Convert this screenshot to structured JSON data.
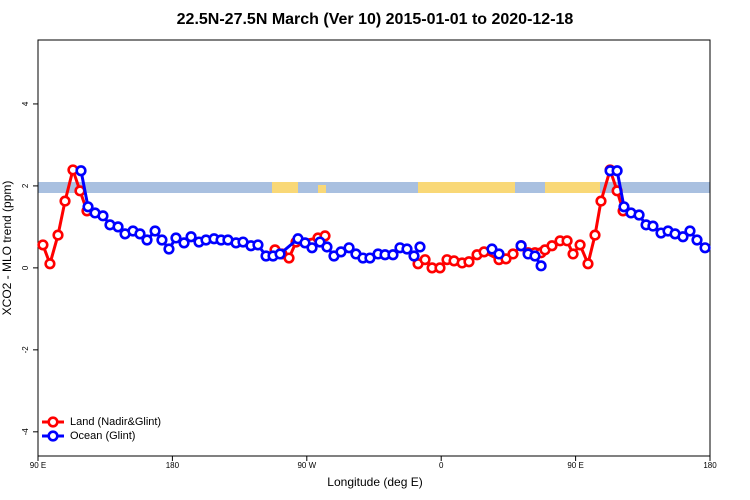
{
  "chart_data": {
    "type": "line",
    "title": "22.5N-27.5N March (Ver 10)   2015-01-01 to 2020-12-18",
    "x_label": "Longitude (deg E)",
    "y_label": "XCO2 - MLO trend (ppm)",
    "xlim": [
      90,
      540
    ],
    "ylim": [
      -4.59,
      5.56
    ],
    "xticks": [
      {
        "value": 90,
        "label": "90 E"
      },
      180,
      {
        "value": 270,
        "label": "90 W"
      },
      {
        "value": 360,
        "label": "0"
      },
      {
        "value": 450,
        "label": "90 E"
      },
      {
        "value": 540,
        "label": "180"
      }
    ],
    "yticks": [
      -4,
      -2,
      0,
      2,
      4
    ],
    "legend": "bottom-left",
    "series": [
      {
        "name": "Land (Nadir&Glint)",
        "color": "#ff0000",
        "x": [
          93.3,
          98.0,
          103.4,
          108.1,
          113.4,
          118.1,
          122.8,
          null,
          248.7,
          253.4,
          258.1,
          262.8,
          277.5,
          282.2,
          null,
          344.5,
          349.2,
          353.9,
          359.2,
          363.9,
          368.6,
          374.0,
          378.6,
          384.0,
          388.7,
          398.7,
          403.4,
          408.1,
          413.5,
          418.2,
          422.8,
          426.9,
          429.5,
          434.2,
          439.6,
          444.3,
          448.3,
          453.0,
          458.3,
          463.0,
          467.0,
          473.1,
          477.8,
          481.8
        ],
        "values": [
          0.56,
          0.1,
          0.8,
          1.63,
          2.39,
          1.88,
          1.39,
          null,
          0.44,
          0.34,
          0.24,
          0.63,
          0.73,
          0.78,
          null,
          0.1,
          0.2,
          0.0,
          0.0,
          0.2,
          0.17,
          0.12,
          0.15,
          0.32,
          0.39,
          0.2,
          0.22,
          0.34,
          0.54,
          0.37,
          0.37,
          0.37,
          0.44,
          0.54,
          0.66,
          0.66,
          0.34,
          0.56,
          0.1,
          0.8,
          1.63,
          2.39,
          1.88,
          1.39
        ]
      },
      {
        "name": "Ocean (Glint)",
        "color": "#0000ff",
        "x": [
          118.8,
          123.5,
          128.2,
          133.5,
          138.2,
          143.6,
          148.3,
          153.6,
          158.3,
          163.0,
          168.4,
          173.0,
          177.7,
          182.4,
          187.8,
          192.5,
          197.8,
          202.5,
          207.9,
          212.6,
          217.2,
          222.6,
          227.3,
          232.6,
          237.3,
          242.7,
          247.4,
          252.1,
          264.1,
          268.8,
          273.5,
          278.8,
          283.5,
          288.2,
          292.9,
          298.3,
          302.9,
          307.6,
          312.3,
          317.7,
          322.4,
          327.7,
          332.4,
          337.1,
          341.8,
          345.8,
          null,
          394.0,
          398.7,
          null,
          413.5,
          418.2,
          422.8,
          426.9,
          null,
          473.1,
          477.8,
          482.4,
          487.1,
          492.5,
          497.2,
          501.8,
          507.2,
          511.9,
          516.6,
          521.9,
          526.6,
          531.3,
          536.7
        ],
        "values": [
          2.37,
          1.49,
          1.34,
          1.27,
          1.05,
          1.0,
          0.83,
          0.9,
          0.83,
          0.68,
          0.9,
          0.68,
          0.46,
          0.73,
          0.61,
          0.76,
          0.63,
          0.68,
          0.71,
          0.68,
          0.68,
          0.61,
          0.63,
          0.54,
          0.56,
          0.29,
          0.29,
          0.34,
          0.71,
          0.61,
          0.49,
          0.63,
          0.51,
          0.29,
          0.39,
          0.49,
          0.34,
          0.24,
          0.24,
          0.34,
          0.32,
          0.32,
          0.49,
          0.46,
          0.29,
          0.51,
          null,
          0.46,
          0.34,
          null,
          0.54,
          0.34,
          0.29,
          0.05,
          null,
          2.37,
          2.37,
          1.49,
          1.34,
          1.29,
          1.05,
          1.02,
          0.85,
          0.9,
          0.83,
          0.76,
          0.9,
          0.68,
          0.49
        ]
      }
    ]
  }
}
